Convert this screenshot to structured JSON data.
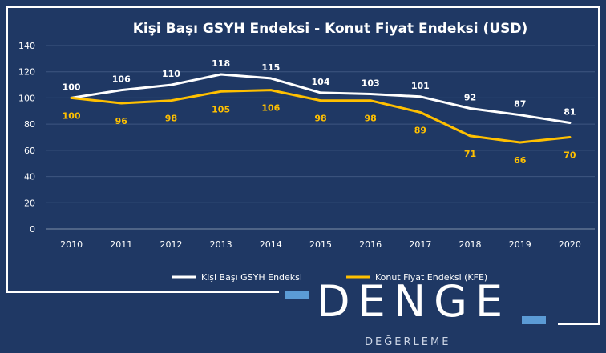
{
  "chart_data": {
    "type": "line",
    "title": "Kişi Başı GSYH Endeksi  - Konut Fiyat Endeksi (USD)",
    "categories": [
      "2010",
      "2011",
      "2012",
      "2013",
      "2014",
      "2015",
      "2016",
      "2017",
      "2018",
      "2019",
      "2020"
    ],
    "ylim": [
      0,
      140
    ],
    "yticks": [
      0,
      20,
      40,
      60,
      80,
      100,
      120,
      140
    ],
    "grid": true,
    "legend_position": "bottom",
    "series": [
      {
        "name": "Kişi Başı GSYH Endeksi",
        "color": "#ffffff",
        "values": [
          100,
          106,
          110,
          118,
          115,
          104,
          103,
          101,
          92,
          87,
          81
        ],
        "labels": [
          "100",
          "106",
          "110",
          "118",
          "115",
          "104",
          "103",
          "101",
          "92",
          "87",
          "81"
        ]
      },
      {
        "name": "Konut Fiyat Endeksi (KFE)",
        "color": "#ffc000",
        "values": [
          100,
          96,
          98,
          105,
          106,
          98,
          98,
          89,
          71,
          66,
          70
        ],
        "labels": [
          "100",
          "96",
          "98",
          "105",
          "106",
          "98",
          "98",
          "89",
          "71",
          "66",
          "70"
        ]
      }
    ]
  },
  "logo": {
    "word": "DENGE",
    "subtitle": "DEĞERLEME",
    "accent_color": "#5b9bd5"
  }
}
